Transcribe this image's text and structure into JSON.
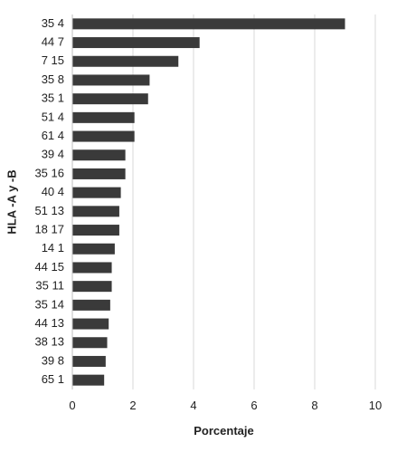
{
  "chart_data": {
    "type": "bar",
    "orientation": "horizontal",
    "title": "",
    "xlabel": "Porcentaje",
    "ylabel": "HLA -A y -B",
    "categories": [
      "35 4",
      "44 7",
      "7 15",
      "35 8",
      "35 1",
      "51 4",
      "61 4",
      "39 4",
      "35 16",
      "40 4",
      "51 13",
      "18 17",
      "14 1",
      "44 15",
      "35 11",
      "35 14",
      "44 13",
      "38 13",
      "39 8",
      "65 1"
    ],
    "values": [
      9.0,
      4.2,
      3.5,
      2.55,
      2.5,
      2.05,
      2.05,
      1.75,
      1.75,
      1.6,
      1.55,
      1.55,
      1.4,
      1.3,
      1.3,
      1.25,
      1.2,
      1.15,
      1.1,
      1.05
    ],
    "xlim": [
      0,
      10
    ],
    "xticks": [
      0,
      2,
      4,
      6,
      8,
      10
    ],
    "grid": "vertical",
    "legend": "none",
    "bar_color": "#3a3a3a",
    "grid_color": "#d9d9d9",
    "text_color": "#222222"
  }
}
